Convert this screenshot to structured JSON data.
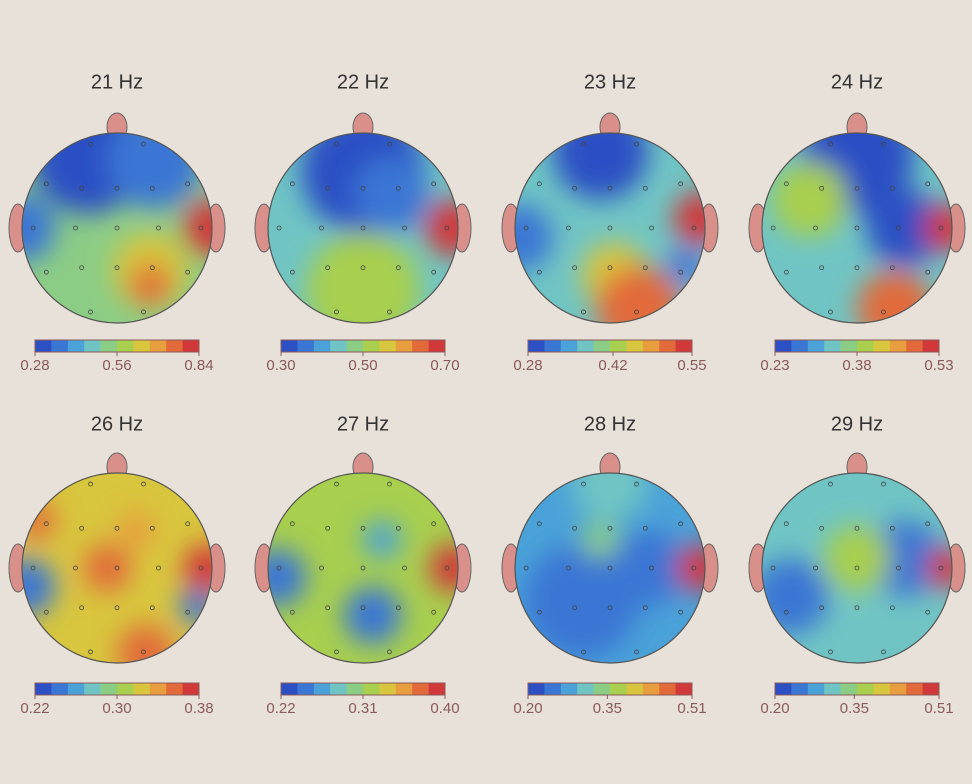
{
  "colormap": [
    "#2c4fc4",
    "#3a76d4",
    "#4aa2d8",
    "#70c5c4",
    "#8ccd86",
    "#a8cf4e",
    "#d8c63e",
    "#e89e3e",
    "#e26a3a",
    "#d0383a"
  ],
  "chart_data": [
    {
      "type": "topomap",
      "title": "21 Hz",
      "clim": [
        0.28,
        0.84
      ],
      "cticks": [
        0.28,
        0.56,
        0.84
      ]
    },
    {
      "type": "topomap",
      "title": "22 Hz",
      "clim": [
        0.3,
        0.7
      ],
      "cticks": [
        {
          "value": 0.3,
          "label": "0.30"
        },
        {
          "value": 0.5,
          "label": "0.50"
        },
        {
          "value": 0.7,
          "label": "0.70"
        }
      ]
    },
    {
      "type": "topomap",
      "title": "23 Hz",
      "clim": [
        0.28,
        0.55
      ],
      "cticks": [
        0.28,
        0.42,
        0.55
      ]
    },
    {
      "type": "topomap",
      "title": "24 Hz",
      "clim": [
        0.23,
        0.53
      ],
      "cticks": [
        0.23,
        0.38,
        0.53
      ]
    },
    {
      "type": "topomap",
      "title": "26 Hz",
      "clim": [
        0.22,
        0.38
      ],
      "cticks": [
        0.22,
        {
          "value": 0.3,
          "label": "0.30"
        },
        0.38
      ]
    },
    {
      "type": "topomap",
      "title": "27 Hz",
      "clim": [
        0.22,
        0.4
      ],
      "cticks": [
        0.22,
        0.31,
        {
          "value": 0.4,
          "label": "0.40"
        }
      ]
    },
    {
      "type": "topomap",
      "title": "28 Hz",
      "clim": [
        0.2,
        0.51
      ],
      "cticks": [
        {
          "value": 0.2,
          "label": "0.20"
        },
        0.35,
        0.51
      ]
    },
    {
      "type": "topomap",
      "title": "29 Hz",
      "clim": [
        0.2,
        0.51
      ],
      "cticks": [
        {
          "value": 0.2,
          "label": "0.20"
        },
        0.35,
        0.51
      ]
    }
  ]
}
